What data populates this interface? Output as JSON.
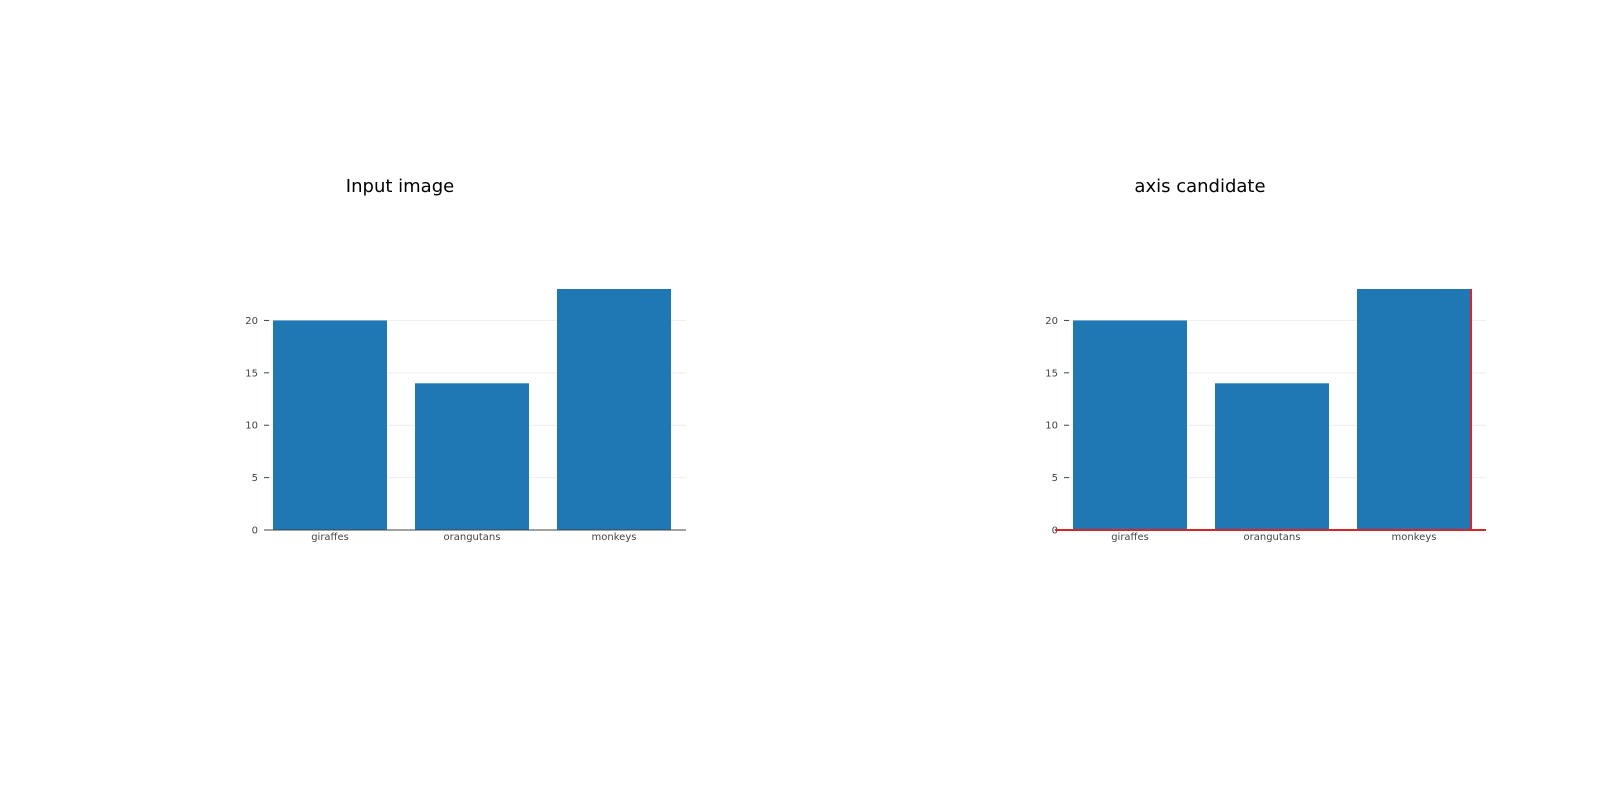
{
  "panels": [
    {
      "title": "Input image",
      "highlight_axis": false
    },
    {
      "title": "axis candidate",
      "highlight_axis": true
    }
  ],
  "colors": {
    "bar": "#1f77b4",
    "axis": "#444444",
    "grid": "#eeeeee",
    "highlight": "#d62728"
  },
  "chart_data": [
    {
      "type": "bar",
      "title": "Input image",
      "categories": [
        "giraffes",
        "orangutans",
        "monkeys"
      ],
      "values": [
        20,
        14,
        23
      ],
      "yticks": [
        0,
        5,
        10,
        15,
        20
      ],
      "ylim": [
        0,
        23
      ],
      "xlabel": "",
      "ylabel": "",
      "grid": true
    },
    {
      "type": "bar",
      "title": "axis candidate",
      "categories": [
        "giraffes",
        "orangutans",
        "monkeys"
      ],
      "values": [
        20,
        14,
        23
      ],
      "yticks": [
        0,
        5,
        10,
        15,
        20
      ],
      "ylim": [
        0,
        23
      ],
      "xlabel": "",
      "ylabel": "",
      "grid": true
    }
  ]
}
